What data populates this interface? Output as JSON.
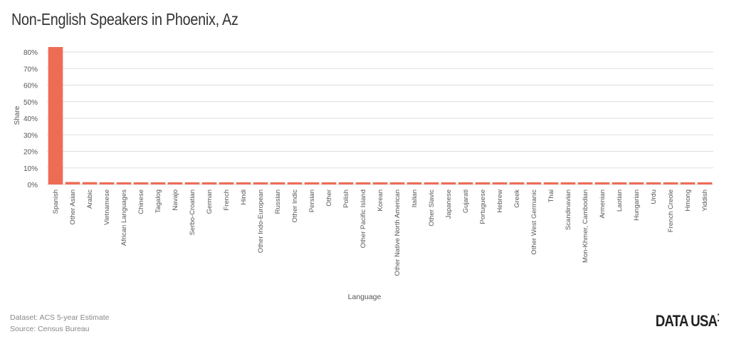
{
  "title": "Non-English Speakers in Phoenix, Az",
  "footer": {
    "dataset": "Dataset: ACS 5-year Estimate",
    "source": "Source: Census Bureau"
  },
  "logo": "DATA USA",
  "colors": {
    "bar": "#ee6c55",
    "grid": "#dddddd"
  },
  "chart_data": {
    "type": "bar",
    "xlabel": "Language",
    "ylabel": "Share",
    "ylim": [
      0,
      0.85
    ],
    "yticks": [
      0,
      0.1,
      0.2,
      0.3,
      0.4,
      0.5,
      0.6,
      0.7,
      0.8
    ],
    "ytick_labels": [
      "0%",
      "10%",
      "20%",
      "30%",
      "40%",
      "50%",
      "60%",
      "70%",
      "80%"
    ],
    "grid": true,
    "categories": [
      "Spanish",
      "Other Asian",
      "Arabic",
      "Vietnamese",
      "African Languages",
      "Chinese",
      "Tagalog",
      "Navajo",
      "Serbo-Croatian",
      "German",
      "French",
      "Hindi",
      "Other Indo-European",
      "Russian",
      "Other Indic",
      "Persian",
      "Other",
      "Polish",
      "Other Pacific Island",
      "Korean",
      "Other Native North American",
      "Italian",
      "Other Slavic",
      "Japanese",
      "Gujarati",
      "Portuguese",
      "Hebrew",
      "Greek",
      "Other West Germanic",
      "Thai",
      "Scandinavian",
      "Mon-Khmer, Cambodian",
      "Armenian",
      "Laotian",
      "Hungarian",
      "Urdu",
      "French Creole",
      "Hmong",
      "Yiddish"
    ],
    "values": [
      0.83,
      0.015,
      0.014,
      0.013,
      0.013,
      0.012,
      0.011,
      0.011,
      0.01,
      0.009,
      0.008,
      0.008,
      0.007,
      0.007,
      0.006,
      0.006,
      0.005,
      0.005,
      0.004,
      0.004,
      0.004,
      0.004,
      0.003,
      0.003,
      0.003,
      0.003,
      0.002,
      0.002,
      0.002,
      0.002,
      0.002,
      0.002,
      0.001,
      0.001,
      0.001,
      0.001,
      0.001,
      0.001,
      0.001
    ]
  }
}
